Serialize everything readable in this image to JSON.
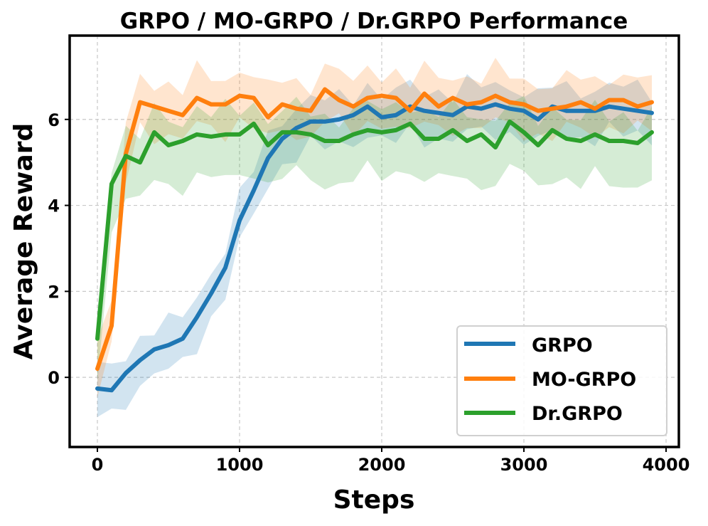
{
  "chart_data": {
    "type": "line",
    "title": "GRPO / MO-GRPO / Dr.GRPO Performance",
    "xlabel": "Steps",
    "ylabel": "Average Reward",
    "xlim": [
      -195,
      4090
    ],
    "ylim": [
      -1.62,
      7.95
    ],
    "xticks": [
      0,
      1000,
      2000,
      3000,
      4000
    ],
    "yticks": [
      0,
      2,
      4,
      6
    ],
    "grid": true,
    "legend_position": "bottom-right",
    "x": [
      0,
      100,
      200,
      300,
      400,
      500,
      600,
      700,
      800,
      900,
      1000,
      1100,
      1200,
      1300,
      1400,
      1500,
      1600,
      1700,
      1800,
      1900,
      2000,
      2100,
      2200,
      2300,
      2400,
      2500,
      2600,
      2700,
      2800,
      2900,
      3000,
      3100,
      3200,
      3300,
      3400,
      3500,
      3600,
      3700,
      3800,
      3900
    ],
    "series": [
      {
        "name": "GRPO",
        "color": "#1f77b4",
        "values": [
          -0.26,
          -0.3,
          0.1,
          0.4,
          0.65,
          0.75,
          0.9,
          1.4,
          1.95,
          2.55,
          3.65,
          4.35,
          5.1,
          5.55,
          5.8,
          5.95,
          5.95,
          6.0,
          6.1,
          6.3,
          6.05,
          6.1,
          6.3,
          6.2,
          6.15,
          6.1,
          6.3,
          6.25,
          6.35,
          6.25,
          6.2,
          6.0,
          6.3,
          6.2,
          6.2,
          6.2,
          6.3,
          6.25,
          6.2,
          6.15
        ],
        "band": {
          "below": 0.6,
          "above": 0.5
        }
      },
      {
        "name": "MO-GRPO",
        "color": "#ff7f0e",
        "values": [
          0.2,
          1.2,
          5.2,
          6.4,
          6.3,
          6.2,
          6.1,
          6.5,
          6.35,
          6.35,
          6.55,
          6.5,
          6.05,
          6.35,
          6.25,
          6.2,
          6.7,
          6.45,
          6.3,
          6.5,
          6.55,
          6.5,
          6.2,
          6.6,
          6.3,
          6.5,
          6.35,
          6.4,
          6.55,
          6.4,
          6.35,
          6.2,
          6.25,
          6.3,
          6.4,
          6.25,
          6.45,
          6.45,
          6.3,
          6.4
        ],
        "band": {
          "below": 0.6,
          "above": 0.6
        }
      },
      {
        "name": "Dr.GRPO",
        "color": "#2ca02c",
        "values": [
          0.9,
          4.5,
          5.15,
          5.0,
          5.7,
          5.4,
          5.5,
          5.65,
          5.6,
          5.65,
          5.65,
          5.9,
          5.4,
          5.7,
          5.7,
          5.65,
          5.5,
          5.5,
          5.65,
          5.75,
          5.7,
          5.75,
          5.9,
          5.55,
          5.55,
          5.75,
          5.5,
          5.65,
          5.35,
          5.95,
          5.7,
          5.4,
          5.75,
          5.55,
          5.5,
          5.65,
          5.5,
          5.5,
          5.45,
          5.7
        ],
        "band": {
          "below": 1.0,
          "above": 0.55
        }
      }
    ]
  }
}
